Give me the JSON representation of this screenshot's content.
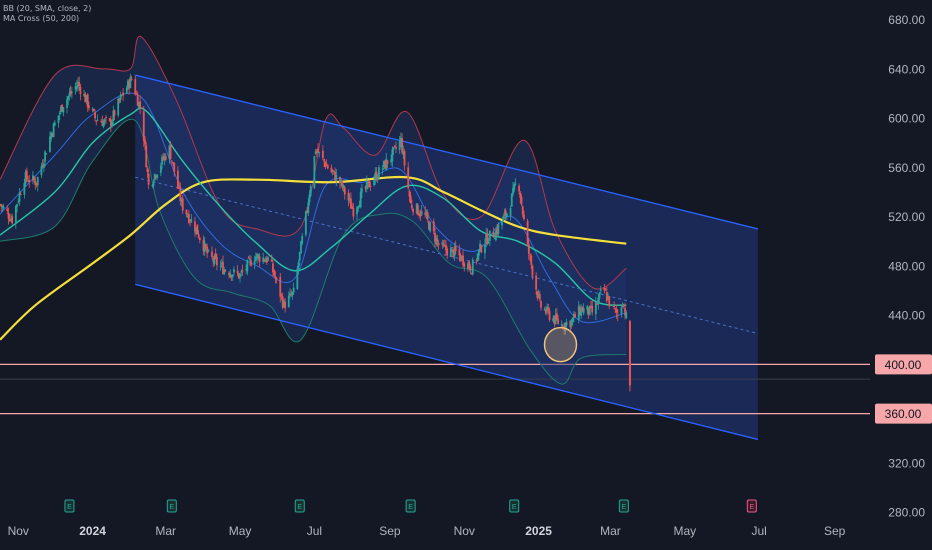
{
  "indicators": [
    "BB (20, SMA, close, 2)",
    "MA Cross (50, 200)"
  ],
  "chart_data": {
    "type": "candlestick",
    "title": "",
    "xlabel": "",
    "ylabel": "",
    "ylim": [
      276,
      696
    ],
    "x_range": [
      "2023-10-17",
      "2025-09-30"
    ],
    "y_ticks": [
      680,
      640,
      600,
      560,
      520,
      480,
      440,
      400,
      360,
      320,
      280
    ],
    "y_tick_labels": [
      "680.00",
      "640.00",
      "600.00",
      "560.00",
      "520.00",
      "480.00",
      "440.00",
      "400.00",
      "360.00",
      "320.00",
      "280.00"
    ],
    "x_ticks": [
      {
        "date": "2023-11-01",
        "label": "Nov",
        "bold": false
      },
      {
        "date": "2024-01-01",
        "label": "2024",
        "bold": true
      },
      {
        "date": "2024-03-01",
        "label": "Mar",
        "bold": false
      },
      {
        "date": "2024-05-01",
        "label": "May",
        "bold": false
      },
      {
        "date": "2024-07-01",
        "label": "Jul",
        "bold": false
      },
      {
        "date": "2024-09-01",
        "label": "Sep",
        "bold": false
      },
      {
        "date": "2024-11-01",
        "label": "Nov",
        "bold": false
      },
      {
        "date": "2025-01-01",
        "label": "2025",
        "bold": true
      },
      {
        "date": "2025-03-01",
        "label": "Mar",
        "bold": false
      },
      {
        "date": "2025-05-01",
        "label": "May",
        "bold": false
      },
      {
        "date": "2025-07-01",
        "label": "Jul",
        "bold": false
      },
      {
        "date": "2025-09-01",
        "label": "Sep",
        "bold": false
      }
    ],
    "price_path": [
      [
        "2023-10-17",
        530
      ],
      [
        "2023-10-27",
        518
      ],
      [
        "2023-11-06",
        552
      ],
      [
        "2023-11-16",
        548
      ],
      [
        "2023-11-28",
        588
      ],
      [
        "2023-12-08",
        612
      ],
      [
        "2023-12-20",
        628
      ],
      [
        "2024-01-03",
        600
      ],
      [
        "2024-01-15",
        595
      ],
      [
        "2024-01-25",
        618
      ],
      [
        "2024-02-02",
        632
      ],
      [
        "2024-02-10",
        605
      ],
      [
        "2024-02-16",
        545
      ],
      [
        "2024-02-24",
        560
      ],
      [
        "2024-03-04",
        575
      ],
      [
        "2024-03-14",
        530
      ],
      [
        "2024-03-26",
        510
      ],
      [
        "2024-04-05",
        488
      ],
      [
        "2024-04-17",
        478
      ],
      [
        "2024-05-01",
        472
      ],
      [
        "2024-05-13",
        488
      ],
      [
        "2024-05-25",
        485
      ],
      [
        "2024-06-06",
        448
      ],
      [
        "2024-06-14",
        458
      ],
      [
        "2024-06-24",
        520
      ],
      [
        "2024-07-02",
        575
      ],
      [
        "2024-07-12",
        560
      ],
      [
        "2024-07-22",
        548
      ],
      [
        "2024-08-02",
        525
      ],
      [
        "2024-08-10",
        540
      ],
      [
        "2024-08-22",
        555
      ],
      [
        "2024-09-03",
        570
      ],
      [
        "2024-09-10",
        582
      ],
      [
        "2024-09-18",
        530
      ],
      [
        "2024-09-30",
        520
      ],
      [
        "2024-10-12",
        495
      ],
      [
        "2024-10-26",
        490
      ],
      [
        "2024-11-07",
        478
      ],
      [
        "2024-11-17",
        500
      ],
      [
        "2024-11-27",
        508
      ],
      [
        "2024-12-07",
        525
      ],
      [
        "2024-12-15",
        552
      ],
      [
        "2024-12-23",
        495
      ],
      [
        "2025-01-02",
        448
      ],
      [
        "2025-01-12",
        438
      ],
      [
        "2025-01-20",
        432
      ],
      [
        "2025-01-28",
        435
      ],
      [
        "2025-02-05",
        445
      ],
      [
        "2025-02-15",
        442
      ],
      [
        "2025-02-23",
        462
      ],
      [
        "2025-03-01",
        448
      ],
      [
        "2025-03-07",
        440
      ],
      [
        "2025-03-11",
        452
      ],
      [
        "2025-03-14",
        438
      ]
    ],
    "last_bar": {
      "date": "2025-03-17",
      "open": 435,
      "high": 436,
      "low": 378,
      "close": 383
    },
    "series": [
      {
        "name": "MA 50",
        "color": "#26c6a6",
        "points": [
          [
            "2023-10-17",
            505
          ],
          [
            "2023-12-01",
            540
          ],
          [
            "2024-01-01",
            580
          ],
          [
            "2024-02-01",
            603
          ],
          [
            "2024-02-15",
            605
          ],
          [
            "2024-03-15",
            565
          ],
          [
            "2024-04-15",
            528
          ],
          [
            "2024-05-15",
            498
          ],
          [
            "2024-06-15",
            476
          ],
          [
            "2024-07-15",
            495
          ],
          [
            "2024-08-15",
            522
          ],
          [
            "2024-09-15",
            545
          ],
          [
            "2024-10-15",
            535
          ],
          [
            "2024-11-15",
            508
          ],
          [
            "2024-12-15",
            500
          ],
          [
            "2025-01-15",
            482
          ],
          [
            "2025-02-15",
            452
          ],
          [
            "2025-03-14",
            448
          ]
        ]
      },
      {
        "name": "MA 200",
        "color": "#f5e03b",
        "points": [
          [
            "2023-10-17",
            420
          ],
          [
            "2023-11-15",
            448
          ],
          [
            "2024-01-01",
            482
          ],
          [
            "2024-02-01",
            505
          ],
          [
            "2024-03-01",
            530
          ],
          [
            "2024-04-01",
            548
          ],
          [
            "2024-05-15",
            550
          ],
          [
            "2024-07-15",
            548
          ],
          [
            "2024-09-15",
            552
          ],
          [
            "2024-10-15",
            540
          ],
          [
            "2024-11-15",
            525
          ],
          [
            "2024-12-15",
            512
          ],
          [
            "2025-01-15",
            505
          ],
          [
            "2025-03-14",
            498
          ]
        ]
      },
      {
        "name": "BB basis",
        "color": "#2f6ae0",
        "points": [
          [
            "2023-10-17",
            522
          ],
          [
            "2023-12-01",
            570
          ],
          [
            "2024-01-01",
            603
          ],
          [
            "2024-02-10",
            617
          ],
          [
            "2024-03-15",
            540
          ],
          [
            "2024-04-15",
            498
          ],
          [
            "2024-05-15",
            480
          ],
          [
            "2024-06-15",
            470
          ],
          [
            "2024-07-10",
            545
          ],
          [
            "2024-08-10",
            548
          ],
          [
            "2024-09-10",
            558
          ],
          [
            "2024-10-10",
            510
          ],
          [
            "2024-11-10",
            492
          ],
          [
            "2024-12-10",
            520
          ],
          [
            "2025-01-10",
            470
          ],
          [
            "2025-02-05",
            435
          ],
          [
            "2025-03-14",
            442
          ]
        ]
      },
      {
        "name": "BB upper",
        "color": "#b2384f",
        "points": [
          [
            "2023-10-17",
            550
          ],
          [
            "2023-12-01",
            635
          ],
          [
            "2024-01-10",
            640
          ],
          [
            "2024-02-01",
            640
          ],
          [
            "2024-02-10",
            666
          ],
          [
            "2024-03-10",
            614
          ],
          [
            "2024-04-15",
            528
          ],
          [
            "2024-05-15",
            510
          ],
          [
            "2024-06-20",
            512
          ],
          [
            "2024-07-10",
            598
          ],
          [
            "2024-07-25",
            592
          ],
          [
            "2024-08-20",
            570
          ],
          [
            "2024-09-15",
            605
          ],
          [
            "2024-10-15",
            538
          ],
          [
            "2024-11-15",
            520
          ],
          [
            "2024-12-20",
            582
          ],
          [
            "2025-01-15",
            508
          ],
          [
            "2025-02-15",
            462
          ],
          [
            "2025-03-14",
            478
          ]
        ]
      },
      {
        "name": "BB lower",
        "color": "#1f7a6b",
        "points": [
          [
            "2023-10-17",
            500
          ],
          [
            "2023-12-01",
            512
          ],
          [
            "2024-01-01",
            565
          ],
          [
            "2024-02-05",
            598
          ],
          [
            "2024-02-25",
            525
          ],
          [
            "2024-03-25",
            470
          ],
          [
            "2024-04-25",
            458
          ],
          [
            "2024-05-25",
            448
          ],
          [
            "2024-06-20",
            420
          ],
          [
            "2024-07-25",
            505
          ],
          [
            "2024-08-25",
            522
          ],
          [
            "2024-09-20",
            516
          ],
          [
            "2024-10-20",
            482
          ],
          [
            "2024-11-20",
            470
          ],
          [
            "2024-12-25",
            412
          ],
          [
            "2025-01-20",
            384
          ],
          [
            "2025-02-05",
            405
          ],
          [
            "2025-03-14",
            408
          ]
        ]
      }
    ],
    "channel": {
      "upper": [
        [
          "2024-02-05",
          635
        ],
        [
          "2025-06-30",
          510
        ]
      ],
      "lower": [
        [
          "2024-02-05",
          465
        ],
        [
          "2025-06-30",
          339
        ]
      ],
      "mid": [
        [
          "2024-02-05",
          552
        ],
        [
          "2025-06-30",
          425
        ]
      ]
    },
    "horizontal_levels": [
      {
        "value": 400,
        "label": "400.00",
        "color": "#f7a7a9"
      },
      {
        "value": 360,
        "label": "360.00",
        "color": "#f7a7a9"
      }
    ],
    "highlight_circle": {
      "date": "2025-01-19",
      "price": 416
    },
    "earnings_markers": {
      "dates": [
        "2023-12-13",
        "2024-03-06",
        "2024-06-19",
        "2024-09-18",
        "2024-12-12",
        "2025-03-12"
      ],
      "label": "E"
    },
    "future_earnings_marker": {
      "date": "2025-06-25",
      "label": "E"
    },
    "colors": {
      "up": "#26a69a",
      "down": "#ef5350",
      "background": "#141824",
      "channel": "#2962ff",
      "channel_fill": "#1b2d5e",
      "axis_text": "#b2b5be"
    }
  }
}
